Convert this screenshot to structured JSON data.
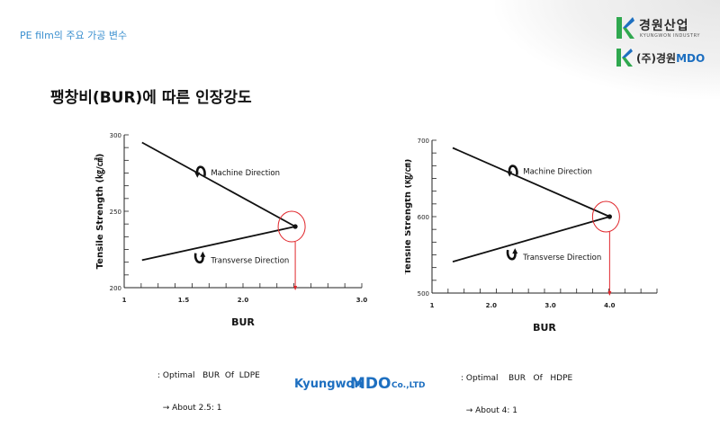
{
  "header": {
    "breadcrumb": "PE film의 주요 가공 변수"
  },
  "brand": {
    "logo1_name": "경원산업",
    "logo1_sub": "KYUNGWON INDUSTRY",
    "logo2_prefix": "(주)경원",
    "logo2_mdo": "MDO",
    "accent_green": "#2fa84f",
    "accent_blue": "#1d6fc0"
  },
  "slide": {
    "title": "팽창비(BUR)에 따른 인장강도"
  },
  "chart_data": [
    {
      "type": "line",
      "ylabel": "Tensile Strength (㎏/㎠)",
      "xlabel": "BUR",
      "xlim": [
        1,
        3.0
      ],
      "ylim": [
        200,
        300
      ],
      "xticks": [
        1,
        1.5,
        2.0,
        2.5,
        3.0
      ],
      "xtick_labels": [
        "1",
        "1.5",
        "2.0",
        "",
        "3.0"
      ],
      "yticks": [
        200,
        250,
        300
      ],
      "series": [
        {
          "name": "Machine Direction",
          "x": [
            1.15,
            2.44
          ],
          "y": [
            295,
            240
          ]
        },
        {
          "name": "Transverse Direction",
          "x": [
            1.15,
            2.44
          ],
          "y": [
            218,
            240
          ]
        }
      ],
      "optimum": {
        "x": 2.44,
        "y": 240
      },
      "note_line1": ": Optimal   BUR  Of  LDPE",
      "note_line2": "  → About 2.5: 1"
    },
    {
      "type": "line",
      "ylabel": "Tensile Strength (㎏/㎠)",
      "xlabel": "BUR",
      "xlim": [
        1,
        4.8
      ],
      "ylim": [
        500,
        700
      ],
      "xticks": [
        1,
        2.0,
        3.0,
        4.0
      ],
      "xtick_labels": [
        "1",
        "2.0",
        "3.0",
        "4.0"
      ],
      "yticks": [
        500,
        600,
        700
      ],
      "series": [
        {
          "name": "Machine Direction",
          "x": [
            1.35,
            4.0
          ],
          "y": [
            690,
            600
          ]
        },
        {
          "name": "Transverse Direction",
          "x": [
            1.35,
            4.0
          ],
          "y": [
            541,
            600
          ]
        }
      ],
      "optimum": {
        "x": 4.0,
        "y": 600
      },
      "note_line1": ": Optimal    BUR   Of   HDPE",
      "note_line2": "  → About 4: 1"
    }
  ],
  "footer": {
    "company_kyungwon": "Kyungwon",
    "company_mdo": "MDO",
    "company_suffix": "Co.,LTD"
  }
}
